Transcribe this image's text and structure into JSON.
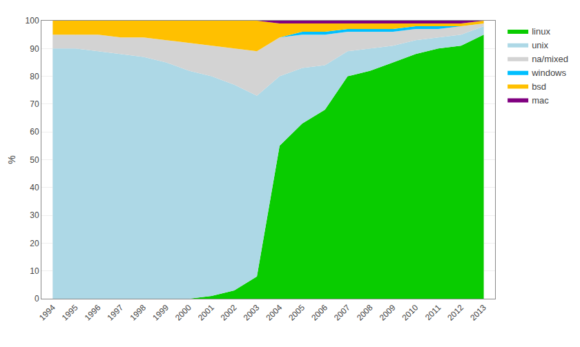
{
  "chart_data": {
    "type": "area",
    "stacked": true,
    "y_label": "%",
    "x": [
      1994,
      1995,
      1996,
      1997,
      1998,
      1999,
      2000,
      2001,
      2002,
      2003,
      2004,
      2005,
      2006,
      2007,
      2008,
      2009,
      2010,
      2011,
      2012,
      2013
    ],
    "series": [
      {
        "name": "linux",
        "color": "#09cc00",
        "values": [
          0,
          0,
          0,
          0,
          0,
          0,
          0,
          1,
          3,
          8,
          55,
          63,
          68,
          80,
          82,
          85,
          88,
          90,
          91,
          95
        ]
      },
      {
        "name": "unix",
        "color": "#add8e6",
        "values": [
          90,
          90,
          89,
          88,
          87,
          85,
          82,
          79,
          74,
          65,
          25,
          20,
          16,
          9,
          8,
          6,
          5,
          4,
          4,
          3
        ]
      },
      {
        "name": "na/mixed",
        "color": "#d3d3d3",
        "values": [
          5,
          5,
          6,
          6,
          7,
          8,
          10,
          11,
          13,
          16,
          14,
          12,
          11,
          7,
          6,
          5,
          4,
          3,
          3,
          1
        ]
      },
      {
        "name": "windows",
        "color": "#00bfff",
        "values": [
          0,
          0,
          0,
          0,
          0,
          0,
          0,
          0,
          0,
          0,
          0,
          1,
          1,
          1,
          1,
          1,
          1,
          1,
          0,
          0
        ]
      },
      {
        "name": "bsd",
        "color": "#ffc000",
        "values": [
          5,
          5,
          5,
          6,
          6,
          7,
          8,
          9,
          10,
          11,
          5,
          3,
          3,
          2,
          2,
          2,
          1,
          1,
          1,
          1
        ]
      },
      {
        "name": "mac",
        "color": "#800080",
        "values": [
          0,
          0,
          0,
          0,
          0,
          0,
          0,
          0,
          0,
          0,
          1,
          1,
          1,
          1,
          1,
          1,
          1,
          1,
          1,
          0
        ]
      }
    ],
    "xlim": [
      1993.5,
      2013.5
    ],
    "xticks": [
      1994,
      1995,
      1996,
      1997,
      1998,
      1999,
      2000,
      2001,
      2002,
      2003,
      2004,
      2005,
      2006,
      2007,
      2008,
      2009,
      2010,
      2011,
      2012,
      2013
    ],
    "ylim": [
      0,
      100
    ],
    "yticks": [
      0,
      10,
      20,
      30,
      40,
      50,
      60,
      70,
      80,
      90,
      100
    ],
    "grid": true,
    "legend": "right"
  }
}
